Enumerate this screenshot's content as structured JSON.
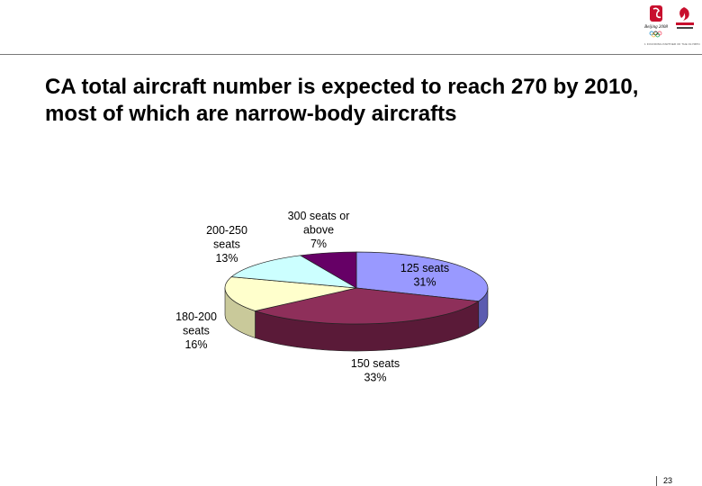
{
  "slide": {
    "title": "CA total aircraft number is expected to reach 270 by 2010, most of which are narrow-body aircrafts",
    "page_number": "23"
  },
  "logos": {
    "left": {
      "icon": "beijing-2008-olympic-emblem",
      "color": "#c8102e"
    },
    "right": {
      "icon": "air-china-phoenix-logo",
      "color": "#c8102e"
    },
    "caption": "1 FOUNDING PARTNER OF THE OLYMPIC GAMES"
  },
  "chart_data": {
    "type": "pie",
    "style": "3d",
    "title": "",
    "slices": [
      {
        "label_lines": [
          "125 seats",
          "31%"
        ],
        "value": 31,
        "color": "#9999ff",
        "side": "#5c5cb0"
      },
      {
        "label_lines": [
          "150 seats",
          "33%"
        ],
        "value": 33,
        "color": "#8e2f5a",
        "side": "#5a1a38"
      },
      {
        "label_lines": [
          "180-200",
          "seats",
          "16%"
        ],
        "value": 16,
        "color": "#ffffcc",
        "side": "#c9c99a"
      },
      {
        "label_lines": [
          "200-250",
          "seats",
          "13%"
        ],
        "value": 13,
        "color": "#ccffff",
        "side": "#99cccc"
      },
      {
        "label_lines": [
          "300 seats or",
          "above",
          "7%"
        ],
        "value": 7,
        "color": "#660066",
        "side": "#3d003d"
      }
    ]
  }
}
